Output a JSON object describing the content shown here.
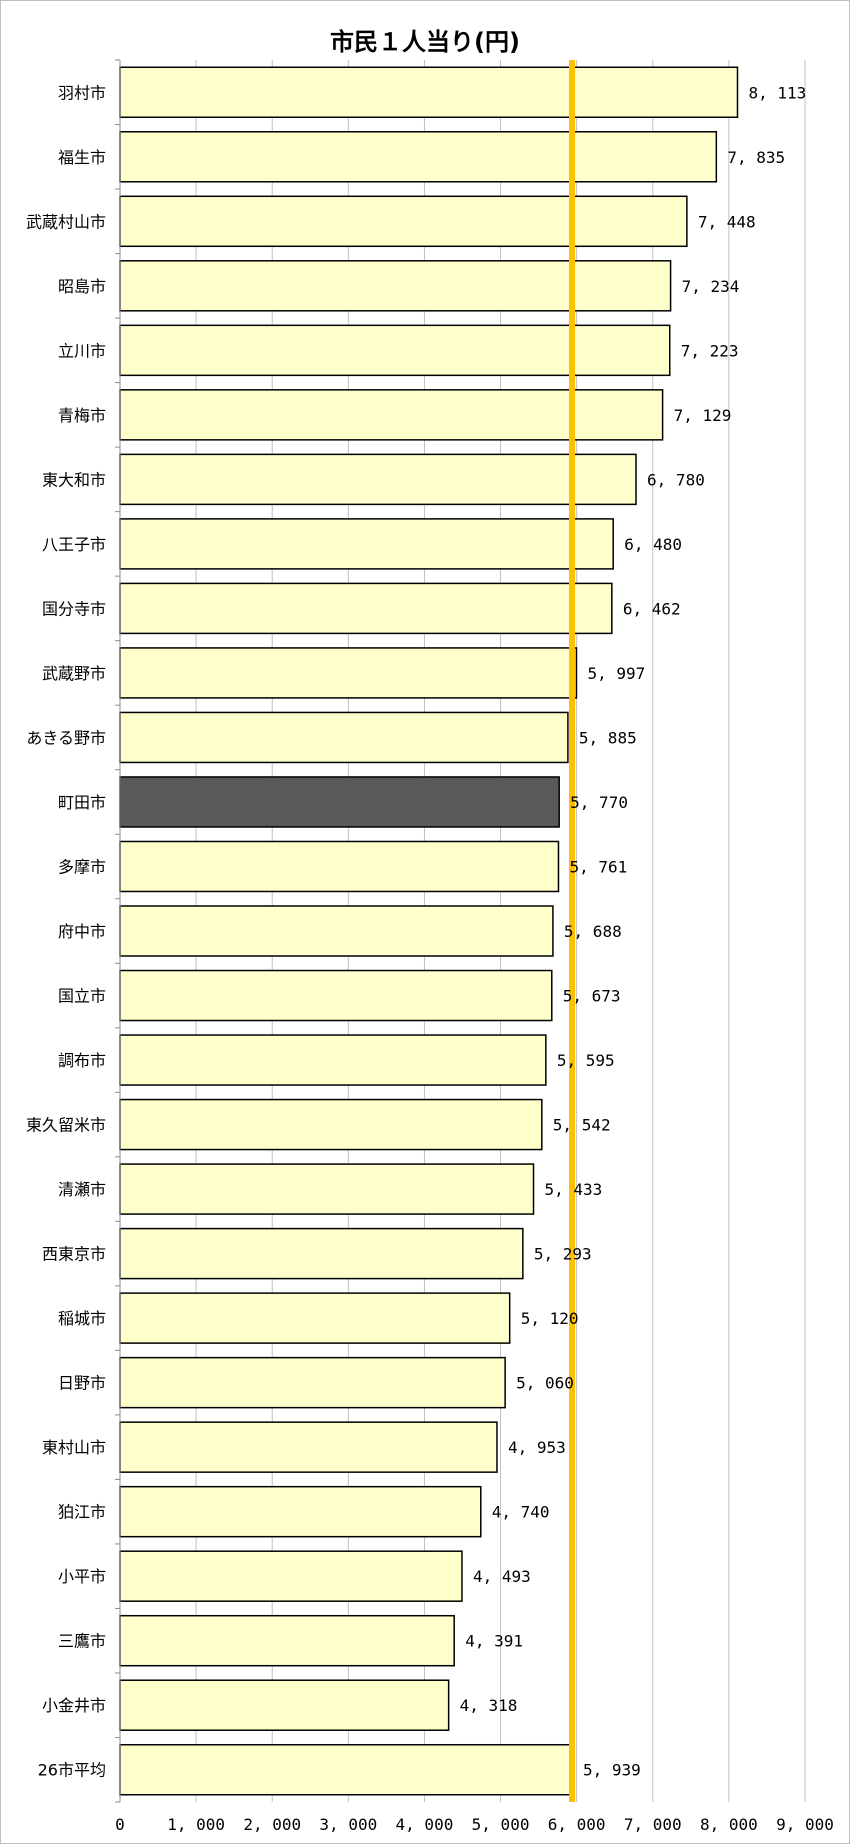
{
  "chart_data": {
    "type": "bar",
    "orientation": "horizontal",
    "title": "市民１人当り(円)",
    "categories": [
      "羽村市",
      "福生市",
      "武蔵村山市",
      "昭島市",
      "立川市",
      "青梅市",
      "東大和市",
      "八王子市",
      "国分寺市",
      "武蔵野市",
      "あきる野市",
      "町田市",
      "多摩市",
      "府中市",
      "国立市",
      "調布市",
      "東久留米市",
      "清瀬市",
      "西東京市",
      "稲城市",
      "日野市",
      "東村山市",
      "狛江市",
      "小平市",
      "三鷹市",
      "小金井市",
      "26市平均"
    ],
    "values": [
      8113,
      7835,
      7448,
      7234,
      7223,
      7129,
      6780,
      6480,
      6462,
      5997,
      5885,
      5770,
      5761,
      5688,
      5673,
      5595,
      5542,
      5433,
      5293,
      5120,
      5060,
      4953,
      4740,
      4493,
      4391,
      4318,
      5939
    ],
    "value_labels": [
      "8, 113",
      "7, 835",
      "7, 448",
      "7, 234",
      "7, 223",
      "7, 129",
      "6, 780",
      "6, 480",
      "6, 462",
      "5, 997",
      "5, 885",
      "5, 770",
      "5, 761",
      "5, 688",
      "5, 673",
      "5, 595",
      "5, 542",
      "5, 433",
      "5, 293",
      "5, 120",
      "5, 060",
      "4, 953",
      "4, 740",
      "4, 493",
      "4, 391",
      "4, 318",
      "5, 939"
    ],
    "highlight_category": "町田市",
    "reference_line_value": 5939,
    "xlim": [
      0,
      9000
    ],
    "x_ticks": [
      0,
      1000,
      2000,
      3000,
      4000,
      5000,
      6000,
      7000,
      8000,
      9000
    ],
    "x_tick_labels": [
      "0",
      "1, 000",
      "2, 000",
      "3, 000",
      "4, 000",
      "5, 000",
      "6, 000",
      "7, 000",
      "8, 000",
      "9, 000"
    ],
    "grid": "vertical",
    "legend": "none",
    "colors": {
      "bar_fill": "#FFFFCC",
      "highlight_fill": "#595959",
      "bar_stroke": "#000000",
      "reference_line": "#FFC000",
      "gridline": "#BFBFBF"
    }
  }
}
